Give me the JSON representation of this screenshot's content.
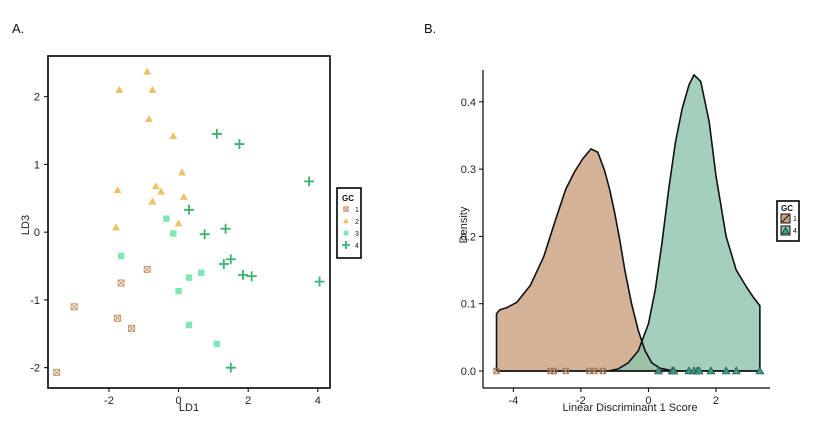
{
  "panel_labels": [
    "A.",
    "B."
  ],
  "chart_data": [
    {
      "type": "scatter",
      "panel": "A.",
      "xlabel": "LD1",
      "ylabel": "LD3",
      "xlim": [
        -3.75,
        4.35
      ],
      "ylim": [
        -2.3,
        2.6
      ],
      "xticks": [
        -2,
        0,
        2,
        4
      ],
      "yticks": [
        -2,
        -1,
        0,
        1,
        2
      ],
      "grid": false,
      "legend": {
        "title": "GC",
        "position": "right"
      },
      "series": [
        {
          "name": "1",
          "marker": "crossed-square",
          "color": "#c8956b",
          "points": [
            [
              -3.5,
              -2.07
            ],
            [
              -3.0,
              -1.1
            ],
            [
              -1.75,
              -1.27
            ],
            [
              -1.65,
              -0.75
            ],
            [
              -1.35,
              -1.42
            ],
            [
              -0.9,
              -0.55
            ]
          ]
        },
        {
          "name": "2",
          "marker": "triangle",
          "color": "#e8c36a",
          "points": [
            [
              -0.9,
              2.37
            ],
            [
              -1.7,
              2.1
            ],
            [
              -0.75,
              2.1
            ],
            [
              -0.85,
              1.67
            ],
            [
              -0.15,
              1.42
            ],
            [
              0.1,
              0.88
            ],
            [
              -1.75,
              0.62
            ],
            [
              -0.65,
              0.68
            ],
            [
              -0.5,
              0.6
            ],
            [
              -0.75,
              0.45
            ],
            [
              0.15,
              0.52
            ],
            [
              0.0,
              0.13
            ],
            [
              -1.8,
              0.07
            ]
          ]
        },
        {
          "name": "3",
          "marker": "square",
          "color": "#7ee8b5",
          "points": [
            [
              -0.35,
              0.2
            ],
            [
              -0.15,
              -0.02
            ],
            [
              -1.65,
              -0.35
            ],
            [
              0.65,
              -0.6
            ],
            [
              0.3,
              -0.67
            ],
            [
              0.0,
              -0.87
            ],
            [
              0.3,
              -1.37
            ],
            [
              1.1,
              -1.65
            ]
          ]
        },
        {
          "name": "4",
          "marker": "plus",
          "color": "#3bb36d",
          "points": [
            [
              1.1,
              1.45
            ],
            [
              1.75,
              1.3
            ],
            [
              3.75,
              0.75
            ],
            [
              0.3,
              0.33
            ],
            [
              1.35,
              0.05
            ],
            [
              0.75,
              -0.03
            ],
            [
              1.5,
              -0.4
            ],
            [
              1.3,
              -0.47
            ],
            [
              1.85,
              -0.63
            ],
            [
              2.1,
              -0.65
            ],
            [
              4.05,
              -0.73
            ],
            [
              1.5,
              -2.0
            ]
          ]
        }
      ]
    },
    {
      "type": "area",
      "panel": "B.",
      "xlabel": "Linear Discriminant 1 Score",
      "ylabel": "Density",
      "xlim": [
        -4.9,
        3.6
      ],
      "ylim": [
        -0.015,
        0.458
      ],
      "xticks": [
        -4,
        -2,
        0,
        2
      ],
      "yticks": [
        0.0,
        0.1,
        0.2,
        0.3,
        0.4
      ],
      "ytick_labels": [
        "0.0",
        "0.1",
        "0.2",
        "0.3",
        "0.4"
      ],
      "grid": false,
      "legend": {
        "title": "GC",
        "position": "right"
      },
      "series": [
        {
          "name": "1",
          "color": "#c9a181",
          "x": [
            -4.5,
            -4.4,
            -4.2,
            -3.9,
            -3.5,
            -3.1,
            -2.75,
            -2.45,
            -2.2,
            -1.95,
            -1.7,
            -1.5,
            -1.3,
            -1.15,
            -1.0,
            -0.85,
            -0.7,
            -0.5,
            -0.3,
            -0.1,
            0.1,
            0.35,
            0.65,
            1.0,
            1.4,
            1.8,
            2.2,
            2.6,
            3.0,
            3.3
          ],
          "y": [
            0.085,
            0.091,
            0.094,
            0.102,
            0.127,
            0.17,
            0.225,
            0.27,
            0.295,
            0.315,
            0.33,
            0.325,
            0.298,
            0.27,
            0.235,
            0.195,
            0.15,
            0.1,
            0.06,
            0.03,
            0.012,
            0.004,
            0.001,
            0.0,
            0.0,
            0.0,
            0.0,
            0.0,
            0.0,
            0.0
          ]
        },
        {
          "name": "4",
          "color": "#8fc4ad",
          "x": [
            -4.5,
            -3.0,
            -2.0,
            -1.5,
            -1.2,
            -0.9,
            -0.6,
            -0.3,
            0.0,
            0.2,
            0.4,
            0.6,
            0.8,
            1.0,
            1.2,
            1.35,
            1.55,
            1.8,
            2.0,
            2.3,
            2.6,
            2.9,
            3.1,
            3.3
          ],
          "y": [
            0.0,
            0.0,
            0.0,
            0.0,
            0.0,
            0.003,
            0.012,
            0.03,
            0.07,
            0.12,
            0.19,
            0.27,
            0.34,
            0.39,
            0.425,
            0.44,
            0.43,
            0.37,
            0.29,
            0.2,
            0.15,
            0.125,
            0.11,
            0.097
          ]
        }
      ],
      "rug": [
        {
          "name": "1",
          "marker": "crossed-square",
          "x": [
            -4.5,
            -2.9,
            -2.8,
            -2.45,
            -1.75,
            -1.6,
            -1.35
          ]
        },
        {
          "name": "4",
          "marker": "triangle",
          "x": [
            0.3,
            0.7,
            0.75,
            1.2,
            1.35,
            1.45,
            1.5,
            1.85,
            2.3,
            2.6,
            3.3
          ]
        }
      ]
    }
  ]
}
